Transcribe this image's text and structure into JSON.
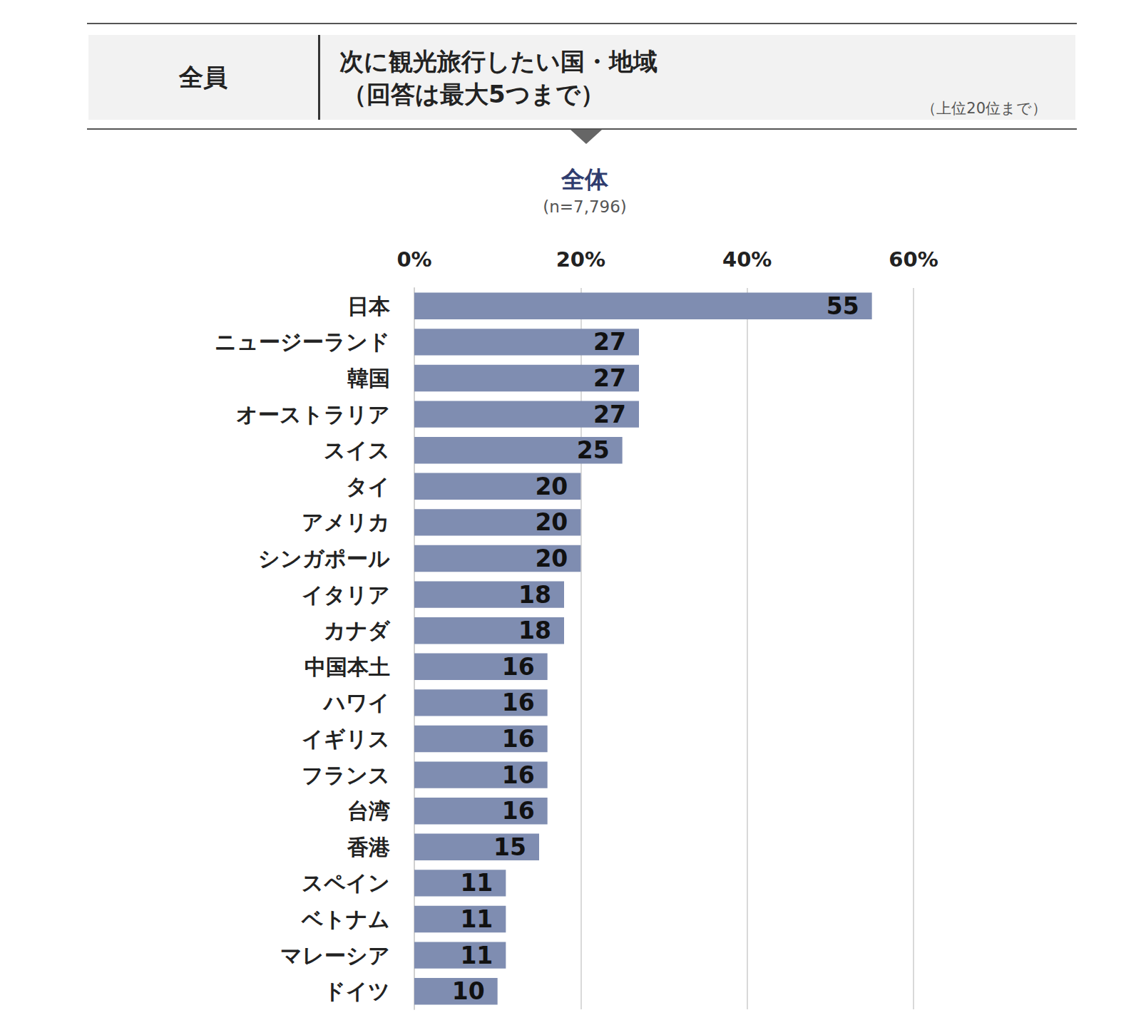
{
  "header": {
    "left": "全員",
    "title": [
      "次に観光旅行したい国・地域",
      "（回答は最大5つまで）"
    ],
    "note": "（上位20位まで）"
  },
  "chart_data": {
    "type": "bar",
    "title": "全体",
    "subtitle": "(n=7,796)",
    "categories": [
      "日本",
      "ニュージーランド",
      "韓国",
      "オーストラリア",
      "スイス",
      "タイ",
      "アメリカ",
      "シンガポール",
      "イタリア",
      "カナダ",
      "中国本土",
      "ハワイ",
      "イギリス",
      "フランス",
      "台湾",
      "香港",
      "スペイン",
      "ベトナム",
      "マレーシア",
      "ドイツ"
    ],
    "values": [
      55,
      27,
      27,
      27,
      25,
      20,
      20,
      20,
      18,
      18,
      16,
      16,
      16,
      16,
      16,
      15,
      11,
      11,
      11,
      10
    ],
    "color": "#7f8db1",
    "orientation": "horizontal",
    "data_labels": true,
    "grid": true,
    "xlim": [
      0,
      60
    ],
    "xticks": [
      {
        "value": 0,
        "label": "0%"
      },
      {
        "value": 20,
        "label": "20%"
      },
      {
        "value": 40,
        "label": "40%"
      },
      {
        "value": 60,
        "label": "60%"
      }
    ]
  }
}
